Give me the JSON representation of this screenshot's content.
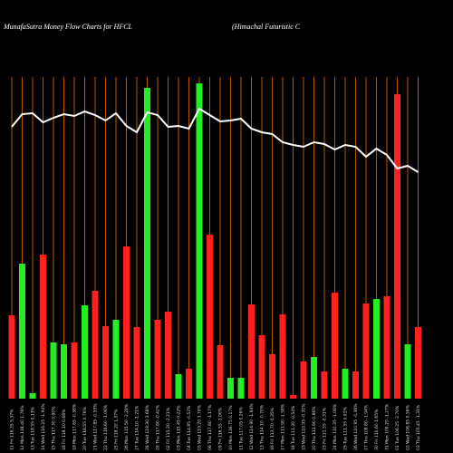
{
  "chart_data": {
    "type": "bar",
    "title": "MunafaSutra  Money Flow  Charts for HFCL",
    "subtitle": "(Himachal Futuristic C",
    "categories": [
      "11 Fri 116.35 5.37%",
      "12 Mon 118.40 1.76%",
      "13 Tue 118.55 0.13%",
      "14 Wed 116.25 -1.94%",
      "15 Thu 117.30 0.90%",
      "18 Fri 118.10 0.68%",
      "19 Mon 117.65 -0.38%",
      "20 Tue 118.55 0.76%",
      "21 Wed 117.85 -0.59%",
      "22 Thu 116.60 -1.06%",
      "25 Fri 118.20 1.37%",
      "26 Mon 115.50 -2.28%",
      "27 Tue 114.10 -1.21%",
      "28 Wed 118.30 3.68%",
      "29 Thu 117.80 -0.42%",
      "02 Fri 115.20 -2.21%",
      "03 Mon 115.45 0.22%",
      "04 Tue 114.85 -0.52%",
      "05 Wed 119.20 3.79%",
      "06 Thu 117.80 -1.17%",
      "09 Fri 116.55 -1.06%",
      "10 Mon 116.75 0.17%",
      "11 Tue 117.05 0.26%",
      "12 Wed 114.90 -1.84%",
      "13 Thu 114.10 -0.70%",
      "16 Fri 113.70 -0.35%",
      "17 Mon 111.90 -1.58%",
      "18 Tue 111.30 -0.54%",
      "19 Wed 110.95 -0.31%",
      "20 Thu 111.90 0.86%",
      "23 Fri 111.55 -0.31%",
      "24 Mon 110.35 -1.08%",
      "25 Tue 111.35 0.91%",
      "26 Wed 110.95 -0.36%",
      "27 Thu 108.80 -1.94%",
      "30 Fri 110.60 1.65%",
      "31 Mon 109.20 -1.27%",
      "01 Tue 106.25 -2.70%",
      "02 Wed 106.85 0.56%",
      "03 Thu 105.45 -1.31%"
    ],
    "values": [
      92,
      149,
      6,
      159,
      62,
      60,
      62,
      103,
      119,
      80,
      87,
      168,
      79,
      343,
      87,
      96,
      27,
      33,
      348,
      181,
      59,
      23,
      23,
      104,
      70,
      49,
      93,
      4,
      41,
      46,
      30,
      117,
      33,
      30,
      105,
      110,
      113,
      336,
      60,
      79
    ],
    "colors": [
      "#ff2020",
      "#22ee22",
      "#22ee22",
      "#ff2020",
      "#22ee22",
      "#22ee22",
      "#ff2020",
      "#22ee22",
      "#ff2020",
      "#ff2020",
      "#22ee22",
      "#ff2020",
      "#ff2020",
      "#22ee22",
      "#ff2020",
      "#ff2020",
      "#22ee22",
      "#ff2020",
      "#22ee22",
      "#ff2020",
      "#ff2020",
      "#22ee22",
      "#22ee22",
      "#ff2020",
      "#ff2020",
      "#ff2020",
      "#ff2020",
      "#ff2020",
      "#ff2020",
      "#22ee22",
      "#ff2020",
      "#ff2020",
      "#22ee22",
      "#ff2020",
      "#ff2020",
      "#22ee22",
      "#ff2020",
      "#ff2020",
      "#22ee22",
      "#ff2020"
    ],
    "line_values": [
      300,
      314,
      315,
      305,
      310,
      314,
      312,
      317,
      313,
      307,
      315,
      301,
      294,
      316,
      313,
      300,
      301,
      298,
      320,
      313,
      306,
      307,
      309,
      298,
      294,
      292,
      283,
      280,
      278,
      283,
      281,
      275,
      280,
      278,
      267,
      276,
      269,
      254,
      257,
      250
    ],
    "line_color": "#ffffff",
    "gridline_color": "#b05a00",
    "ylim": [
      0,
      355
    ]
  }
}
